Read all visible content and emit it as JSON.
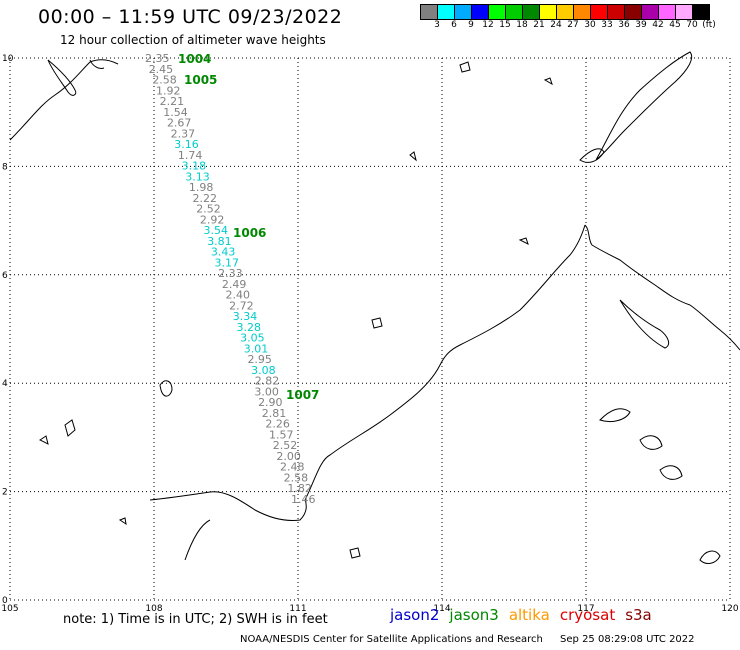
{
  "title": "00:00 – 11:59 UTC 09/23/2022",
  "subtitle": "12 hour collection of altimeter wave heights",
  "legend": {
    "colors": [
      "#808080",
      "#00ffff",
      "#00aaff",
      "#0000ff",
      "#00ff00",
      "#00cc00",
      "#008800",
      "#ffff00",
      "#ffcc00",
      "#ff8800",
      "#ff0000",
      "#cc0000",
      "#880000",
      "#aa00aa",
      "#ff66ff",
      "#ffaaff",
      "#000000"
    ],
    "labels": [
      "3",
      "6",
      "9",
      "12",
      "15",
      "18",
      "21",
      "24",
      "27",
      "30",
      "33",
      "36",
      "39",
      "42",
      "45",
      "70",
      "(ft)"
    ]
  },
  "axes": {
    "x_labels": [
      "105",
      "108",
      "111",
      "114",
      "117",
      "120"
    ],
    "y_labels": [
      "0",
      "2",
      "4",
      "6",
      "8",
      "10"
    ]
  },
  "track_labels": [
    {
      "text": "2.35",
      "color": "#808080"
    },
    {
      "text": "2.45",
      "color": "#808080"
    },
    {
      "text": "2.58",
      "color": "#808080"
    },
    {
      "text": "1.92",
      "color": "#808080"
    },
    {
      "text": "2.21",
      "color": "#808080"
    },
    {
      "text": "1.54",
      "color": "#808080"
    },
    {
      "text": "2.67",
      "color": "#808080"
    },
    {
      "text": "2.37",
      "color": "#808080"
    },
    {
      "text": "3.16",
      "color": "#00cccc"
    },
    {
      "text": "1.74",
      "color": "#808080"
    },
    {
      "text": "3.18",
      "color": "#00cccc"
    },
    {
      "text": "3.13",
      "color": "#00cccc"
    },
    {
      "text": "1.98",
      "color": "#808080"
    },
    {
      "text": "2.22",
      "color": "#808080"
    },
    {
      "text": "2.52",
      "color": "#808080"
    },
    {
      "text": "2.92",
      "color": "#808080"
    },
    {
      "text": "3.54",
      "color": "#00cccc"
    },
    {
      "text": "3.81",
      "color": "#00cccc"
    },
    {
      "text": "3.43",
      "color": "#00cccc"
    },
    {
      "text": "3.17",
      "color": "#00cccc"
    },
    {
      "text": "2.33",
      "color": "#808080"
    },
    {
      "text": "2.49",
      "color": "#808080"
    },
    {
      "text": "2.40",
      "color": "#808080"
    },
    {
      "text": "2.72",
      "color": "#808080"
    },
    {
      "text": "3.34",
      "color": "#00cccc"
    },
    {
      "text": "3.28",
      "color": "#00cccc"
    },
    {
      "text": "3.05",
      "color": "#00cccc"
    },
    {
      "text": "3.01",
      "color": "#00cccc"
    },
    {
      "text": "2.95",
      "color": "#808080"
    },
    {
      "text": "3.08",
      "color": "#00cccc"
    },
    {
      "text": "2.82",
      "color": "#808080"
    },
    {
      "text": "3.00",
      "color": "#808080"
    },
    {
      "text": "2.90",
      "color": "#808080"
    },
    {
      "text": "2.81",
      "color": "#808080"
    },
    {
      "text": "2.26",
      "color": "#808080"
    },
    {
      "text": "1.57",
      "color": "#808080"
    },
    {
      "text": "2.52",
      "color": "#808080"
    },
    {
      "text": "2.00",
      "color": "#808080"
    },
    {
      "text": "2.48",
      "color": "#808080"
    },
    {
      "text": "2.58",
      "color": "#808080"
    },
    {
      "text": "1.82",
      "color": "#808080"
    },
    {
      "text": "1.46",
      "color": "#808080"
    }
  ],
  "time_labels": [
    "1004",
    "1005",
    "1006",
    "1007"
  ],
  "time_label_color": "#008800",
  "note": "note: 1) Time is in UTC; 2) SWH is in feet",
  "satellites": [
    {
      "name": "jason2",
      "color": "#0000cc"
    },
    {
      "name": "jason3",
      "color": "#008800"
    },
    {
      "name": "altika",
      "color": "#ff9900"
    },
    {
      "name": "cryosat",
      "color": "#dd0000"
    },
    {
      "name": "s3a",
      "color": "#880000"
    }
  ],
  "footer": {
    "source": "NOAA/NESDIS Center for Satellite Applications and Research",
    "timestamp": "Sep 25 08:29:08 UTC 2022"
  }
}
